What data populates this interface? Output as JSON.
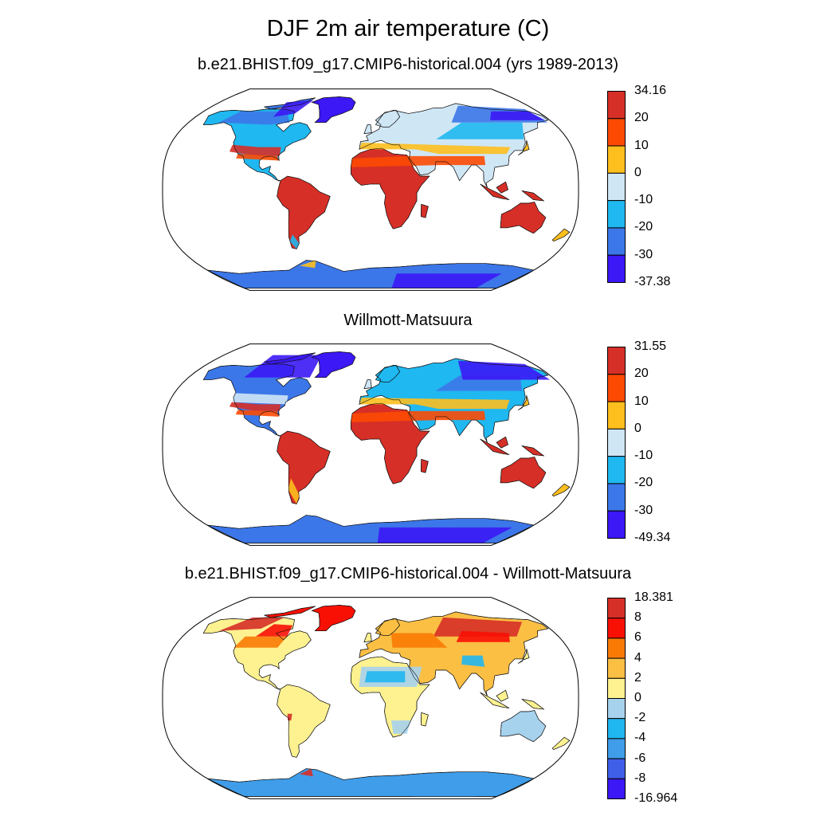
{
  "title": "DJF 2m air temperature (C)",
  "panels": [
    {
      "id": "model",
      "title": "b.e21.BHIST.f09_g17.CMIP6-historical.004 (yrs 1989-2013)",
      "colorbar": {
        "labels": [
          "34.16",
          "20",
          "10",
          "0",
          "-10",
          "-20",
          "-30",
          "-37.38"
        ],
        "colors": [
          "#d62f27",
          "#fc4a03",
          "#fdbf1e",
          "#cfe6f5",
          "#1fb8f0",
          "#3c77e9",
          "#3b18f5"
        ]
      }
    },
    {
      "id": "obs",
      "title": "Willmott-Matsuura",
      "colorbar": {
        "labels": [
          "31.55",
          "20",
          "10",
          "0",
          "-10",
          "-20",
          "-30",
          "-49.34"
        ],
        "colors": [
          "#d62f27",
          "#fc4a03",
          "#fdbf1e",
          "#cfe6f5",
          "#1fb8f0",
          "#3c77e9",
          "#3b18f5"
        ]
      }
    },
    {
      "id": "diff",
      "title": "b.e21.BHIST.f09_g17.CMIP6-historical.004 - Willmott-Matsuura",
      "colorbar": {
        "labels": [
          "18.381",
          "8",
          "6",
          "4",
          "2",
          "0",
          "-2",
          "-4",
          "-6",
          "-8",
          "-16.964"
        ],
        "colors": [
          "#d62f27",
          "#f81005",
          "#f97b06",
          "#fbbf44",
          "#fdf190",
          "#a6d2ee",
          "#20b6f0",
          "#3f9de9",
          "#3f5fe9",
          "#3b18f5"
        ]
      }
    }
  ]
}
